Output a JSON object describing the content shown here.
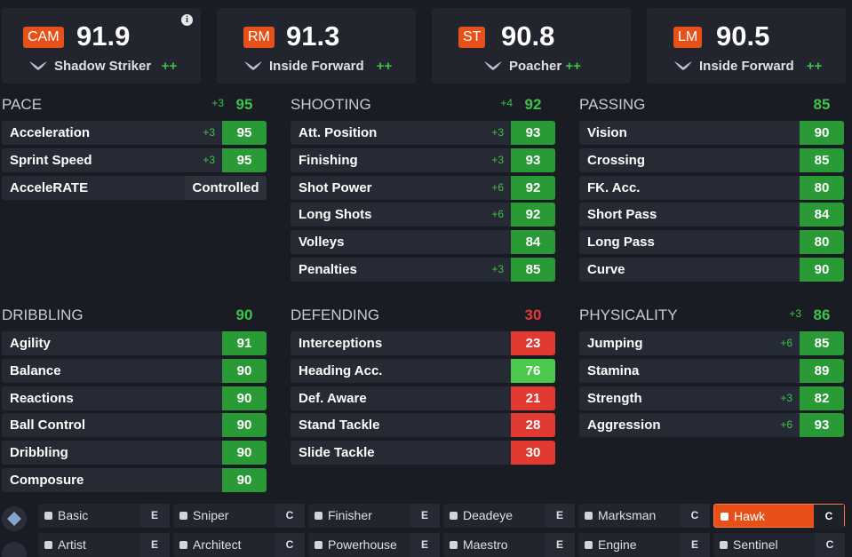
{
  "positions": [
    {
      "position": "CAM",
      "rating": 91.9,
      "role": "Shadow Striker",
      "plus": "++"
    },
    {
      "position": "RM",
      "rating": 91.3,
      "role": "Inside Forward",
      "plus": "++"
    },
    {
      "position": "ST",
      "rating": 90.8,
      "role": "Poacher",
      "plus": "++"
    },
    {
      "position": "LM",
      "rating": 90.5,
      "role": "Inside Forward",
      "plus": "++"
    }
  ],
  "sections": [
    {
      "title": "PACE",
      "boost": "+3",
      "rating": 95,
      "stats": [
        {
          "name": "Acceleration",
          "boost": "+3",
          "value": 95
        },
        {
          "name": "Sprint Speed",
          "boost": "+3",
          "value": 95
        },
        {
          "name": "AcceleRATE",
          "value": "Controlled"
        }
      ]
    },
    {
      "title": "SHOOTING",
      "boost": "+4",
      "rating": 92,
      "stats": [
        {
          "name": "Att. Position",
          "boost": "+3",
          "value": 93
        },
        {
          "name": "Finishing",
          "boost": "+3",
          "value": 93
        },
        {
          "name": "Shot Power",
          "boost": "+6",
          "value": 92
        },
        {
          "name": "Long Shots",
          "boost": "+6",
          "value": 92
        },
        {
          "name": "Volleys",
          "value": 84
        },
        {
          "name": "Penalties",
          "boost": "+3",
          "value": 85
        }
      ]
    },
    {
      "title": "PASSING",
      "rating": 85,
      "stats": [
        {
          "name": "Vision",
          "value": 90
        },
        {
          "name": "Crossing",
          "value": 85
        },
        {
          "name": "FK. Acc.",
          "value": 80
        },
        {
          "name": "Short Pass",
          "value": 84
        },
        {
          "name": "Long Pass",
          "value": 80
        },
        {
          "name": "Curve",
          "value": 90
        }
      ]
    },
    {
      "title": "DRIBBLING",
      "rating": 90,
      "stats": [
        {
          "name": "Agility",
          "value": 91
        },
        {
          "name": "Balance",
          "value": 90
        },
        {
          "name": "Reactions",
          "value": 90
        },
        {
          "name": "Ball Control",
          "value": 90
        },
        {
          "name": "Dribbling",
          "value": 90
        },
        {
          "name": "Composure",
          "value": 90
        }
      ]
    },
    {
      "title": "DEFENDING",
      "rating": 30,
      "stats": [
        {
          "name": "Interceptions",
          "value": 23
        },
        {
          "name": "Heading Acc.",
          "value": 76
        },
        {
          "name": "Def. Aware",
          "value": 21
        },
        {
          "name": "Stand Tackle",
          "value": 28
        },
        {
          "name": "Slide Tackle",
          "value": 30
        }
      ]
    },
    {
      "title": "PHYSICALITY",
      "boost": "+3",
      "rating": 86,
      "stats": [
        {
          "name": "Jumping",
          "boost": "+6",
          "value": 85
        },
        {
          "name": "Stamina",
          "value": 89
        },
        {
          "name": "Strength",
          "boost": "+3",
          "value": 82
        },
        {
          "name": "Aggression",
          "boost": "+6",
          "value": 93
        }
      ]
    }
  ],
  "playstyles": [
    {
      "name": "Basic",
      "letter": "E"
    },
    {
      "name": "Sniper",
      "letter": "C"
    },
    {
      "name": "Finisher",
      "letter": "E"
    },
    {
      "name": "Deadeye",
      "letter": "E"
    },
    {
      "name": "Marksman",
      "letter": "C"
    },
    {
      "name": "Hawk",
      "letter": "C",
      "active": true
    },
    {
      "name": "Artist",
      "letter": "E"
    },
    {
      "name": "Architect",
      "letter": "C"
    },
    {
      "name": "Powerhouse",
      "letter": "E"
    },
    {
      "name": "Maestro",
      "letter": "E"
    },
    {
      "name": "Engine",
      "letter": "E"
    },
    {
      "name": "Sentinel",
      "letter": "C"
    }
  ]
}
